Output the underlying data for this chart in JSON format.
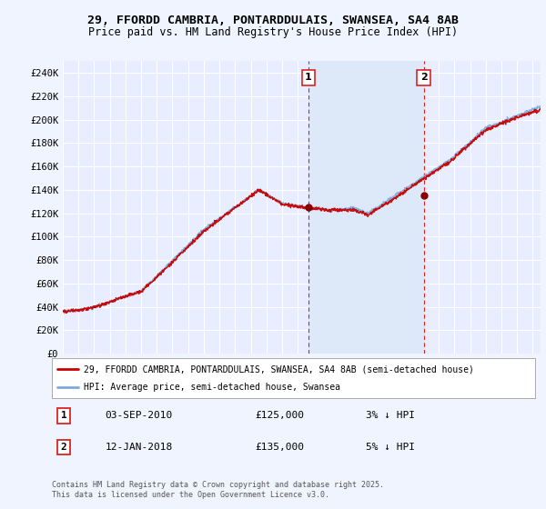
{
  "title_line1": "29, FFORDD CAMBRIA, PONTARDDULAIS, SWANSEA, SA4 8AB",
  "title_line2": "Price paid vs. HM Land Registry's House Price Index (HPI)",
  "ylabel_ticks": [
    "£0",
    "£20K",
    "£40K",
    "£60K",
    "£80K",
    "£100K",
    "£120K",
    "£140K",
    "£160K",
    "£180K",
    "£200K",
    "£220K",
    "£240K"
  ],
  "ytick_values": [
    0,
    20000,
    40000,
    60000,
    80000,
    100000,
    120000,
    140000,
    160000,
    180000,
    200000,
    220000,
    240000
  ],
  "xlim_start": 1995.0,
  "xlim_end": 2025.5,
  "ylim_min": 0,
  "ylim_max": 250000,
  "sale1_date": 2010.67,
  "sale1_price": 125000,
  "sale1_label": "1",
  "sale2_date": 2018.04,
  "sale2_price": 135000,
  "sale2_label": "2",
  "legend_label_red": "29, FFORDD CAMBRIA, PONTARDDULAIS, SWANSEA, SA4 8AB (semi-detached house)",
  "legend_label_blue": "HPI: Average price, semi-detached house, Swansea",
  "footnote": "Contains HM Land Registry data © Crown copyright and database right 2025.\nThis data is licensed under the Open Government Licence v3.0.",
  "background_color": "#f0f4ff",
  "plot_bg_color": "#e8eeff",
  "grid_color": "#d0d8e8",
  "red_line_color": "#cc0000",
  "blue_line_color": "#7aabdb",
  "vline_color": "#dd2222",
  "shade_color": "#dde8f8",
  "marker_color": "#880000"
}
